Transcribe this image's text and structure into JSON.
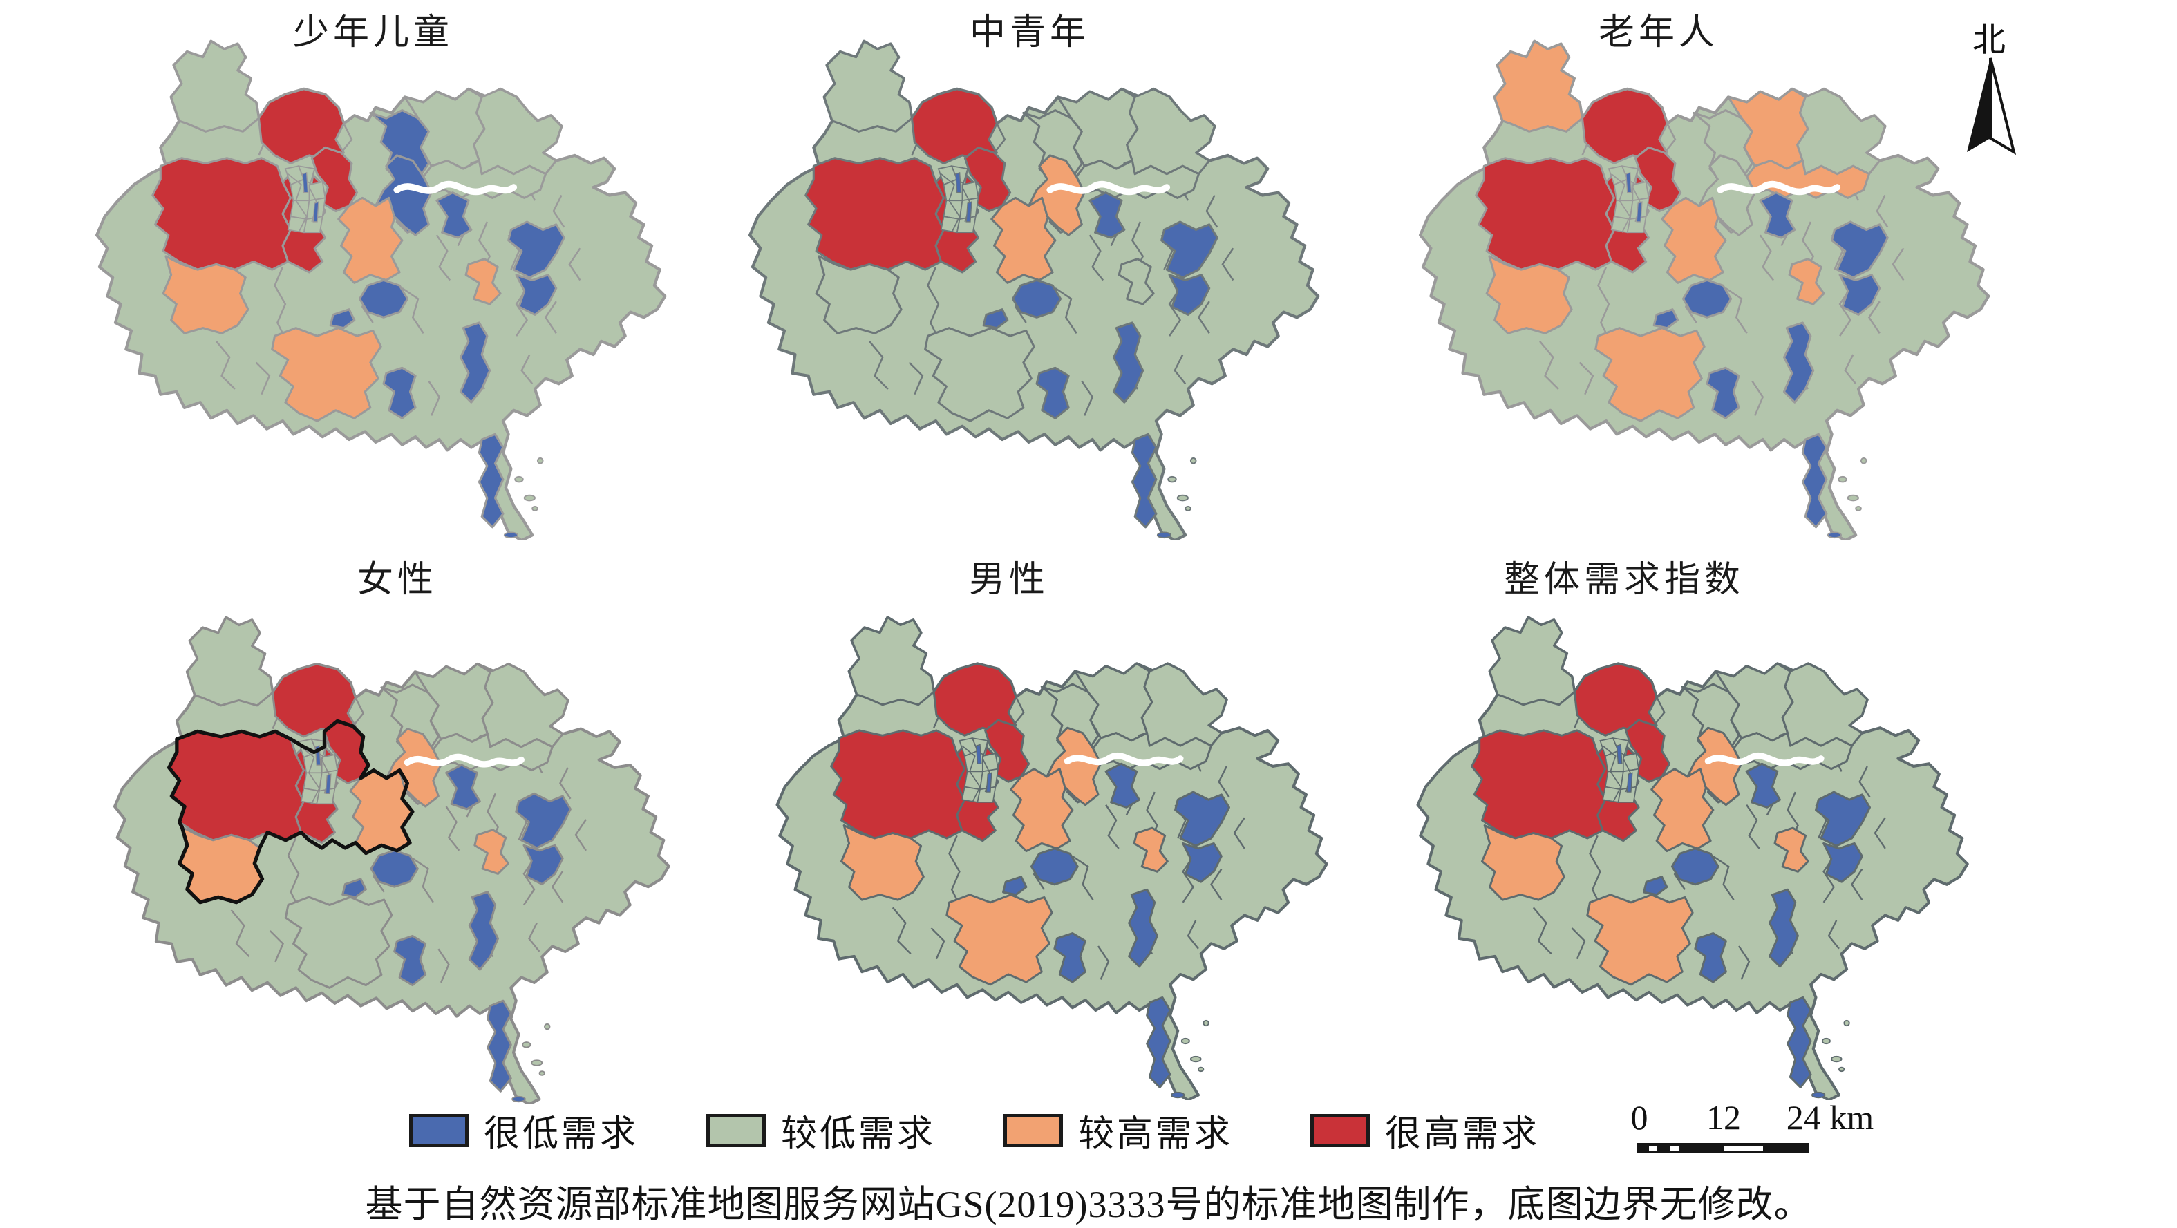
{
  "figure": {
    "background": "#ffffff"
  },
  "level_colors": {
    "VL": "#4A6AAF",
    "L": "#B3C5AC",
    "H": "#F2A272",
    "VH": "#C93238"
  },
  "north_arrow": {
    "label": "北"
  },
  "legend": {
    "items": [
      {
        "label": "很低需求",
        "level": "VL",
        "color": "#4A6AAF"
      },
      {
        "label": "较低需求",
        "level": "L",
        "color": "#B3C5AC"
      },
      {
        "label": "较高需求",
        "level": "H",
        "color": "#F2A272"
      },
      {
        "label": "很高需求",
        "level": "VH",
        "color": "#C93238"
      }
    ]
  },
  "scale_bar": {
    "labels": [
      "0",
      "12",
      "24 km"
    ]
  },
  "attribution": "基于自然资源部标准地图服务网站GS(2019)3333号的标准地图制作，底图边界无修改。",
  "panels": [
    {
      "id": "children",
      "title": "少年儿童",
      "border_color": "#9A9A9A",
      "highlight_outline": false,
      "regions": {
        "nw_lobe": "L",
        "north": "VH",
        "west": "VH",
        "center_red": "VH",
        "core_ne": "VH",
        "sw": "H",
        "s_orange": "H",
        "band_main": "H",
        "band_ne": "VL",
        "ne_blue_big": "VL",
        "ne_lobe": "L",
        "ne_far": "L",
        "ne_orange_far": "L",
        "river_blue": "VL",
        "coast_blue1": "VL",
        "coast_blue2": "VL",
        "s_blue1": "VL",
        "s_blue_sm": "VL",
        "se_blue_vert": "VL",
        "s_blue2": "VL",
        "pen_blue": "VL",
        "e_orange_small": "H"
      }
    },
    {
      "id": "young_adults",
      "title": "中青年",
      "border_color": "#6E787A",
      "highlight_outline": false,
      "regions": {
        "nw_lobe": "L",
        "north": "VH",
        "west": "VH",
        "center_red": "VH",
        "core_ne": "VH",
        "sw": "L",
        "s_orange": "L",
        "band_main": "H",
        "band_ne": "H",
        "ne_blue_big": "L",
        "ne_lobe": "L",
        "ne_far": "L",
        "ne_orange_far": "L",
        "river_blue": "VL",
        "coast_blue1": "VL",
        "coast_blue2": "VL",
        "s_blue1": "VL",
        "s_blue_sm": "VL",
        "se_blue_vert": "VL",
        "s_blue2": "VL",
        "pen_blue": "VL",
        "e_orange_small": "L"
      }
    },
    {
      "id": "elderly",
      "title": "老年人",
      "border_color": "#9A9A9A",
      "highlight_outline": false,
      "regions": {
        "nw_lobe": "H",
        "north": "VH",
        "west": "VH",
        "center_red": "VH",
        "core_ne": "VH",
        "sw": "H",
        "s_orange": "H",
        "band_main": "H",
        "band_ne": "L",
        "ne_blue_big": "L",
        "ne_lobe": "H",
        "ne_far": "L",
        "ne_orange_far": "H",
        "river_blue": "VL",
        "coast_blue1": "VL",
        "coast_blue2": "VL",
        "s_blue1": "VL",
        "s_blue_sm": "VL",
        "se_blue_vert": "VL",
        "s_blue2": "VL",
        "pen_blue": "VL",
        "e_orange_small": "H"
      }
    },
    {
      "id": "female",
      "title": "女性",
      "border_color": "#8C8C8C",
      "highlight_outline": true,
      "regions": {
        "nw_lobe": "L",
        "north": "VH",
        "west": "VH",
        "center_red": "VH",
        "core_ne": "VH",
        "sw": "H",
        "s_orange": "L",
        "band_main": "H",
        "band_ne": "H",
        "ne_blue_big": "L",
        "ne_lobe": "L",
        "ne_far": "L",
        "ne_orange_far": "L",
        "river_blue": "VL",
        "coast_blue1": "VL",
        "coast_blue2": "VL",
        "s_blue1": "VL",
        "s_blue_sm": "VL",
        "se_blue_vert": "VL",
        "s_blue2": "VL",
        "pen_blue": "VL",
        "e_orange_small": "H"
      }
    },
    {
      "id": "male",
      "title": "男性",
      "border_color": "#5F6B6E",
      "highlight_outline": false,
      "regions": {
        "nw_lobe": "L",
        "north": "VH",
        "west": "VH",
        "center_red": "VH",
        "core_ne": "VH",
        "sw": "H",
        "s_orange": "H",
        "band_main": "H",
        "band_ne": "H",
        "ne_blue_big": "L",
        "ne_lobe": "L",
        "ne_far": "L",
        "ne_orange_far": "L",
        "river_blue": "VL",
        "coast_blue1": "VL",
        "coast_blue2": "VL",
        "s_blue1": "VL",
        "s_blue_sm": "VL",
        "se_blue_vert": "VL",
        "s_blue2": "VL",
        "pen_blue": "VL",
        "e_orange_small": "H"
      }
    },
    {
      "id": "overall",
      "title": "整体需求指数",
      "border_color": "#5F6B6E",
      "highlight_outline": false,
      "regions": {
        "nw_lobe": "L",
        "north": "VH",
        "west": "VH",
        "center_red": "VH",
        "core_ne": "VH",
        "sw": "H",
        "s_orange": "H",
        "band_main": "H",
        "band_ne": "H",
        "ne_blue_big": "L",
        "ne_lobe": "L",
        "ne_far": "L",
        "ne_orange_far": "L",
        "river_blue": "VL",
        "coast_blue1": "VL",
        "coast_blue2": "VL",
        "s_blue1": "VL",
        "s_blue_sm": "VL",
        "se_blue_vert": "VL",
        "s_blue2": "VL",
        "pen_blue": "VL",
        "e_orange_small": "H"
      }
    }
  ]
}
